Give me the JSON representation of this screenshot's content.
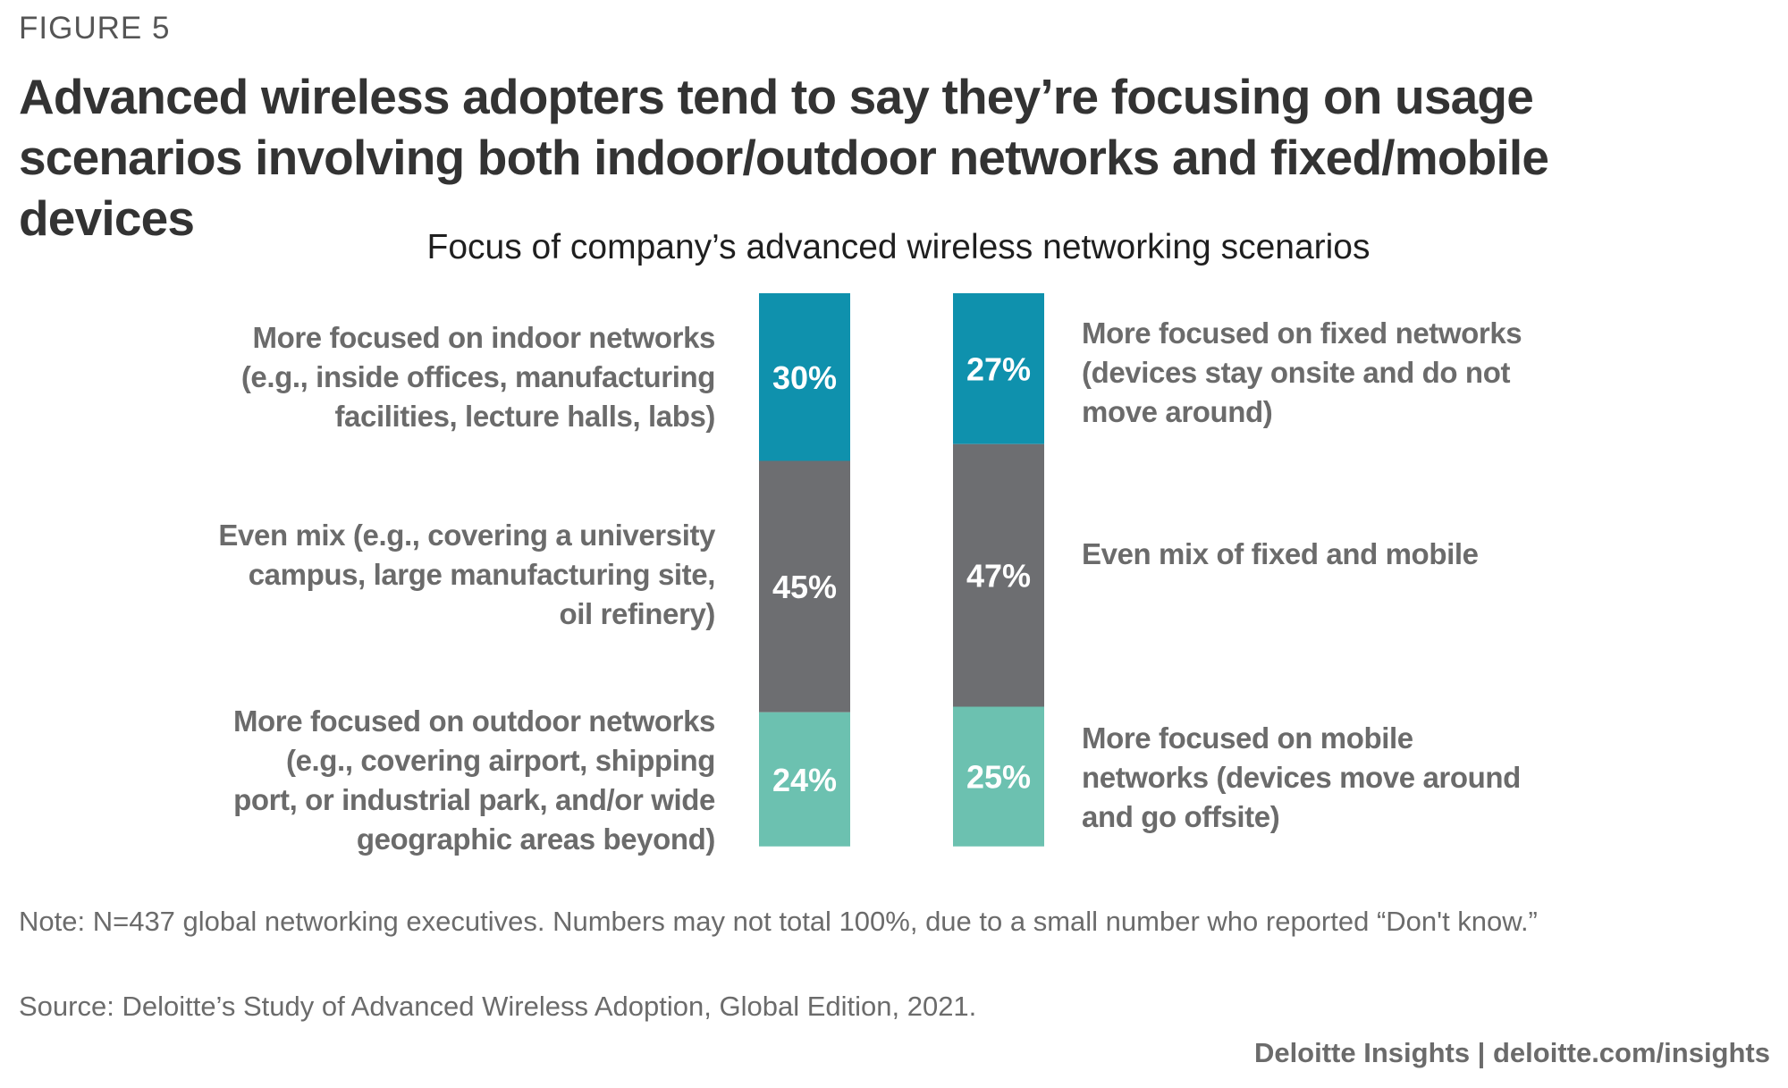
{
  "figure_label": "FIGURE 5",
  "headline": "Advanced wireless adopters tend to say they’re focusing on usage scenarios involving both indoor/outdoor networks and fixed/mobile devices",
  "chart_data": {
    "type": "bar",
    "stacked": true,
    "title": "Focus of company’s advanced wireless networking scenarios",
    "unit": "%",
    "bars": [
      {
        "segments": [
          {
            "label": "More focused on indoor networks (e.g., inside offices, manufacturing facilities, lecture halls, labs)",
            "value": 30,
            "display": "30%",
            "color": "#0F91AD"
          },
          {
            "label": "Even mix (e.g., covering a university campus, large manufacturing site, oil refinery)",
            "value": 45,
            "display": "45%",
            "color": "#6D6E71"
          },
          {
            "label": "More focused on outdoor networks (e.g., covering airport, shipping port, or industrial park, and/or wide geographic areas beyond)",
            "value": 24,
            "display": "24%",
            "color": "#6CC1B0"
          }
        ]
      },
      {
        "segments": [
          {
            "label": "More focused on fixed networks (devices stay onsite and do not move around)",
            "value": 27,
            "display": "27%",
            "color": "#0F91AD"
          },
          {
            "label": "Even mix of fixed and mobile",
            "value": 47,
            "display": "47%",
            "color": "#6D6E71"
          },
          {
            "label": "More focused on mobile networks (devices move around and go offsite)",
            "value": 25,
            "display": "25%",
            "color": "#6CC1B0"
          }
        ]
      }
    ],
    "left_labels": [
      "More focused on indoor networks (e.g., inside offices, manufacturing facilities, lecture halls, labs)",
      "Even mix (e.g., covering a university campus, large manufacturing site, oil refinery)",
      "More focused on outdoor networks (e.g., covering airport, shipping port, or industrial park, and/or wide geographic areas beyond)"
    ],
    "right_labels": [
      "More focused on fixed networks (devices stay onsite and do not move around)",
      "Even mix of fixed and mobile",
      "More focused on mobile networks (devices move around and go offsite)"
    ]
  },
  "note": "Note: N=437 global networking executives. Numbers may not total 100%, due to a small number who reported “Don't know.”",
  "source": "Source: Deloitte’s Study of Advanced Wireless Adoption, Global Edition, 2021.",
  "branding": "Deloitte Insights | deloitte.com/insights"
}
